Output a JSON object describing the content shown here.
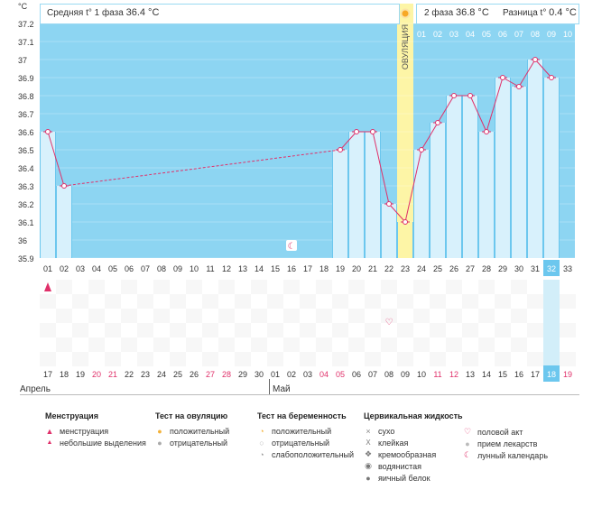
{
  "header": {
    "phase1_label": "Средняя t° 1 фаза",
    "phase1_value": "36.4 °C",
    "phase2_label": "2 фаза",
    "phase2_value": "36.8 °C",
    "diff_label": "Разница t°",
    "diff_value": "0.4 °C"
  },
  "chart_data": {
    "type": "line",
    "title": "",
    "ylabel": "°C",
    "ylim": [
      35.9,
      37.3
    ],
    "yticks": [
      "35.9",
      "36",
      "36.1",
      "36.2",
      "36.3",
      "36.4",
      "36.5",
      "36.6",
      "36.7",
      "36.8",
      "36.9",
      "37",
      "37.1",
      "37.2",
      "°C"
    ],
    "cycle_days": [
      "01",
      "02",
      "03",
      "04",
      "05",
      "06",
      "07",
      "08",
      "09",
      "10",
      "11",
      "12",
      "13",
      "14",
      "15",
      "16",
      "17",
      "18",
      "19",
      "20",
      "21",
      "22",
      "23",
      "24",
      "25",
      "26",
      "27",
      "28",
      "29",
      "30",
      "31",
      "32",
      "33"
    ],
    "top_cycle_days": [
      "01",
      "02",
      "03",
      "04",
      "05",
      "06",
      "07",
      "08",
      "09",
      "10"
    ],
    "ovulation_day": "23",
    "ovulation_label": "ОВУЛЯЦИЯ",
    "current_day": "32",
    "temperature_series": [
      {
        "day": 1,
        "value": 36.6
      },
      {
        "day": 2,
        "value": 36.3
      },
      {
        "day": 19,
        "value": 36.5
      },
      {
        "day": 20,
        "value": 36.6
      },
      {
        "day": 21,
        "value": 36.6
      },
      {
        "day": 22,
        "value": 36.2
      },
      {
        "day": 23,
        "value": 36.1
      },
      {
        "day": 24,
        "value": 36.5
      },
      {
        "day": 25,
        "value": 36.65
      },
      {
        "day": 26,
        "value": 36.8
      },
      {
        "day": 27,
        "value": 36.8
      },
      {
        "day": 28,
        "value": 36.6
      },
      {
        "day": 29,
        "value": 36.9
      },
      {
        "day": 30,
        "value": 36.85
      },
      {
        "day": 31,
        "value": 37.0
      },
      {
        "day": 32,
        "value": 36.9
      }
    ],
    "gap_from_day": 2,
    "gap_to_day": 19,
    "markers": {
      "menstruation_day": 1,
      "intercourse_day": 22,
      "lunar_day": 16
    },
    "dates": [
      "17",
      "18",
      "19",
      "20",
      "21",
      "22",
      "23",
      "24",
      "25",
      "26",
      "27",
      "28",
      "29",
      "30",
      "01",
      "02",
      "03",
      "04",
      "05",
      "06",
      "07",
      "08",
      "09",
      "10",
      "11",
      "12",
      "13",
      "14",
      "15",
      "16",
      "17",
      "18",
      "19"
    ],
    "red_date_indices": [
      3,
      4,
      10,
      11,
      17,
      18,
      24,
      25,
      32
    ],
    "month_april": "Апрель",
    "month_may": "Май"
  },
  "legend": {
    "menstruation": {
      "title": "Менструация",
      "items": [
        "менструация",
        "небольшие выделения"
      ]
    },
    "ovulation_test": {
      "title": "Тест на овуляцию",
      "items": [
        "положительный",
        "отрицательный"
      ]
    },
    "pregnancy_test": {
      "title": "Тест на беременность",
      "items": [
        "положительный",
        "отрицательный",
        "слабоположительный"
      ]
    },
    "cervical": {
      "title": "Цервикальная жидкость",
      "items": [
        "сухо",
        "клейкая",
        "кремообразная",
        "водянистая",
        "яичный белок"
      ]
    },
    "other": {
      "items": [
        "половой акт",
        "прием лекарств",
        "лунный календарь"
      ]
    }
  },
  "colors": {
    "bg_blue": "#8dd5f2",
    "bar_light": "#d8f1fc",
    "bar_edge": "#6cc7ee",
    "ovulation": "#fdf5a6",
    "line": "#e0306a",
    "grid": "#eeeeee",
    "red_text": "#e0306a",
    "current_day": "#6cc7ee"
  }
}
